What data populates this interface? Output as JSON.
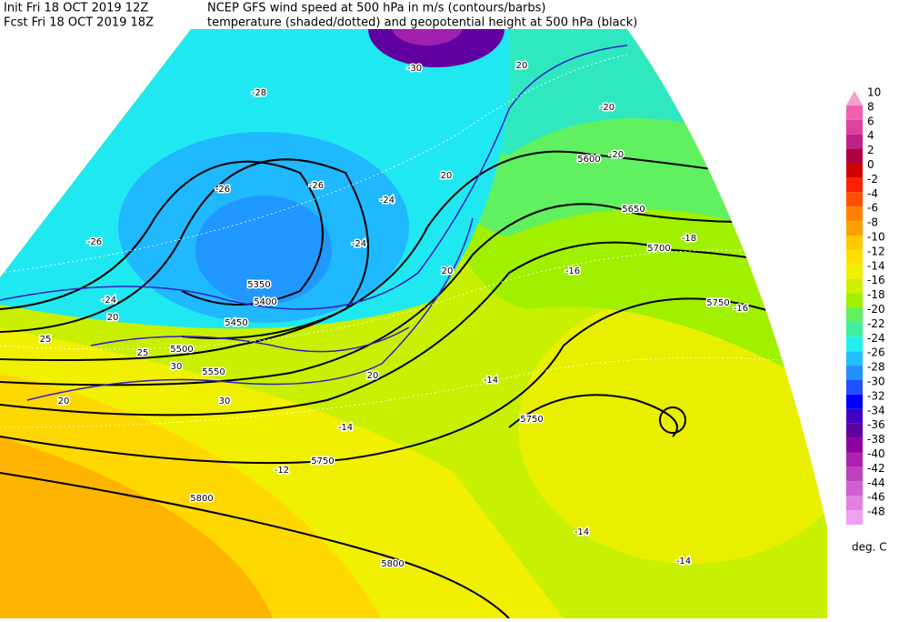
{
  "header": {
    "init": "Init  Fri 18 OCT 2019 12Z",
    "fcst": "Fcst Fri 18 OCT 2019 18Z",
    "title": "NCEP GFS wind speed at 500 hPa in m/s (contours/barbs)",
    "subtitle": "temperature (shaded/dotted) and geopotential height at 500 hPa (black)"
  },
  "colorbar": {
    "unit": "deg. C",
    "levels": [
      {
        "value": 10,
        "color": "#f4a0c8"
      },
      {
        "value": 8,
        "color": "#f060b0"
      },
      {
        "value": 6,
        "color": "#e040a0"
      },
      {
        "value": 4,
        "color": "#c0208a"
      },
      {
        "value": 2,
        "color": "#b00040"
      },
      {
        "value": 0,
        "color": "#d00000"
      },
      {
        "value": -2,
        "color": "#ff2000"
      },
      {
        "value": -4,
        "color": "#ff5000"
      },
      {
        "value": -6,
        "color": "#ff8000"
      },
      {
        "value": -8,
        "color": "#ffa000"
      },
      {
        "value": -10,
        "color": "#ffc800"
      },
      {
        "value": -12,
        "color": "#ffe000"
      },
      {
        "value": -14,
        "color": "#f0f000"
      },
      {
        "value": -16,
        "color": "#d0f000"
      },
      {
        "value": -18,
        "color": "#a0f000"
      },
      {
        "value": -20,
        "color": "#60f060"
      },
      {
        "value": -22,
        "color": "#40f0a0"
      },
      {
        "value": -24,
        "color": "#20f0f0"
      },
      {
        "value": -26,
        "color": "#20c0ff"
      },
      {
        "value": -28,
        "color": "#2090ff"
      },
      {
        "value": -30,
        "color": "#2050ff"
      },
      {
        "value": -32,
        "color": "#0000ff"
      },
      {
        "value": -34,
        "color": "#4000c0"
      },
      {
        "value": -36,
        "color": "#6000a0"
      },
      {
        "value": -38,
        "color": "#9000a0"
      },
      {
        "value": -40,
        "color": "#b020b0"
      },
      {
        "value": -42,
        "color": "#c040c0"
      },
      {
        "value": -44,
        "color": "#d060d0"
      },
      {
        "value": -46,
        "color": "#e080e0"
      },
      {
        "value": -48,
        "color": "#f0a0f0"
      }
    ]
  },
  "map": {
    "contour_labels": [
      "5600",
      "5650",
      "5700",
      "5750",
      "5750",
      "5750",
      "5800",
      "5800",
      "5550",
      "5500",
      "5450",
      "5400",
      "5350",
      "-26",
      "-24",
      "-26",
      "-26",
      "-24",
      "-24",
      "-20",
      "-20",
      "-18",
      "-16",
      "-16",
      "-14",
      "-14",
      "-12",
      "-14",
      "-14",
      "20",
      "20",
      "25",
      "25",
      "20",
      "30",
      "30",
      "20",
      "20",
      "20",
      "-28",
      "-30"
    ]
  }
}
